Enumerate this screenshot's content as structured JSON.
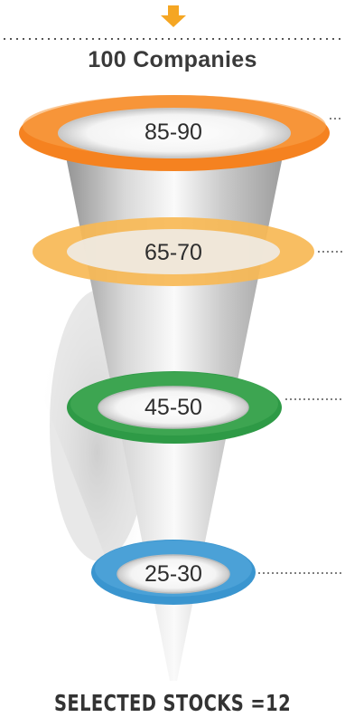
{
  "header": {
    "title": "100 Companies"
  },
  "funnel": {
    "stages": [
      {
        "label": "85-90",
        "color": "#f58220"
      },
      {
        "label": "65-70",
        "color": "#f7b955"
      },
      {
        "label": "45-50",
        "color": "#2e9a46"
      },
      {
        "label": "25-30",
        "color": "#3a95cf"
      }
    ]
  },
  "footer": {
    "text": "SELECTED STOCKS =12"
  },
  "colors": {
    "arrow": "#f5a623",
    "dots": "#555555"
  }
}
